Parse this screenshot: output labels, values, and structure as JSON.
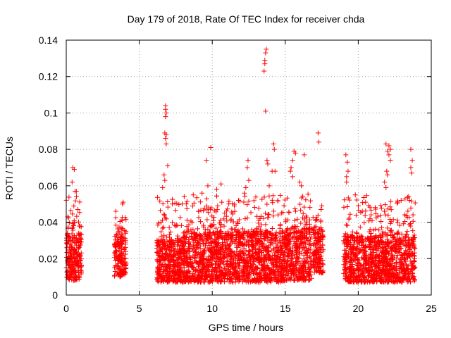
{
  "chart_data": {
    "type": "scatter",
    "title": "Day 179 of 2018, Rate Of TEC Index for receiver chda",
    "xlabel": "GPS time / hours",
    "ylabel": "ROTI / TECUs",
    "xlim": [
      0,
      25
    ],
    "ylim": [
      0,
      0.14
    ],
    "x_ticks": [
      0,
      5,
      10,
      15,
      20,
      25
    ],
    "x_tick_labels": [
      "0",
      "5",
      "10",
      "15",
      "20",
      "25"
    ],
    "y_ticks": [
      0,
      0.02,
      0.04,
      0.06,
      0.08,
      0.1,
      0.12,
      0.14
    ],
    "y_tick_labels": [
      "0",
      "0.02",
      "0.04",
      "0.06",
      "0.08",
      "0.1",
      "0.12",
      "0.14"
    ],
    "grid": true,
    "marker": "+",
    "marker_color": "#ff0000",
    "segments": [
      {
        "x_start": 0.0,
        "x_end": 1.05,
        "base_min": 0.008,
        "base_max": 0.034,
        "tail_max": 0.058,
        "spikes": [
          [
            0.45,
            0.07
          ],
          [
            0.55,
            0.069
          ],
          [
            0.4,
            0.062
          ],
          [
            0.6,
            0.057
          ],
          [
            0.7,
            0.054
          ],
          [
            0.8,
            0.047
          ]
        ]
      },
      {
        "x_start": 3.3,
        "x_end": 4.1,
        "base_min": 0.01,
        "base_max": 0.033,
        "tail_max": 0.045,
        "spikes": [
          [
            3.9,
            0.051
          ],
          [
            3.85,
            0.05
          ],
          [
            3.4,
            0.046
          ]
        ]
      },
      {
        "x_start": 6.2,
        "x_end": 8.0,
        "base_min": 0.007,
        "base_max": 0.03,
        "tail_max": 0.055,
        "spikes": [
          [
            6.8,
            0.104
          ],
          [
            6.8,
            0.102
          ],
          [
            6.85,
            0.1
          ],
          [
            6.8,
            0.098
          ],
          [
            6.75,
            0.089
          ],
          [
            6.85,
            0.088
          ],
          [
            6.8,
            0.086
          ],
          [
            6.85,
            0.083
          ],
          [
            6.95,
            0.071
          ],
          [
            6.7,
            0.066
          ],
          [
            6.75,
            0.063
          ],
          [
            6.6,
            0.059
          ]
        ]
      },
      {
        "x_start": 8.0,
        "x_end": 11.0,
        "base_min": 0.007,
        "base_max": 0.034,
        "tail_max": 0.055,
        "spikes": [
          [
            9.9,
            0.081
          ],
          [
            9.6,
            0.074
          ],
          [
            10.6,
            0.061
          ],
          [
            9.7,
            0.06
          ],
          [
            9.3,
            0.056
          ],
          [
            10.3,
            0.058
          ],
          [
            8.7,
            0.055
          ]
        ]
      },
      {
        "x_start": 11.0,
        "x_end": 13.3,
        "base_min": 0.007,
        "base_max": 0.034,
        "tail_max": 0.055,
        "spikes": [
          [
            12.45,
            0.074
          ],
          [
            12.4,
            0.07
          ],
          [
            12.5,
            0.063
          ],
          [
            12.3,
            0.059
          ],
          [
            12.2,
            0.056
          ],
          [
            11.8,
            0.052
          ]
        ]
      },
      {
        "x_start": 13.3,
        "x_end": 15.0,
        "base_min": 0.007,
        "base_max": 0.034,
        "tail_max": 0.055,
        "spikes": [
          [
            13.7,
            0.135
          ],
          [
            13.65,
            0.133
          ],
          [
            13.6,
            0.129
          ],
          [
            13.6,
            0.127
          ],
          [
            13.55,
            0.123
          ],
          [
            13.65,
            0.101
          ],
          [
            13.75,
            0.074
          ],
          [
            13.8,
            0.072
          ],
          [
            14.2,
            0.083
          ],
          [
            14.25,
            0.08
          ],
          [
            14.1,
            0.068
          ],
          [
            14.3,
            0.068
          ],
          [
            13.9,
            0.06
          ]
        ]
      },
      {
        "x_start": 15.0,
        "x_end": 16.8,
        "base_min": 0.008,
        "base_max": 0.036,
        "tail_max": 0.058,
        "spikes": [
          [
            15.6,
            0.079
          ],
          [
            15.7,
            0.078
          ],
          [
            16.3,
            0.077
          ],
          [
            15.5,
            0.074
          ],
          [
            15.4,
            0.07
          ],
          [
            15.35,
            0.068
          ],
          [
            15.5,
            0.065
          ],
          [
            16.0,
            0.062
          ],
          [
            16.1,
            0.06
          ]
        ]
      },
      {
        "x_start": 16.9,
        "x_end": 17.6,
        "base_min": 0.012,
        "base_max": 0.035,
        "tail_max": 0.045,
        "spikes": [
          [
            17.25,
            0.089
          ],
          [
            17.3,
            0.084
          ],
          [
            17.5,
            0.049
          ],
          [
            17.45,
            0.047
          ]
        ]
      },
      {
        "x_start": 19.0,
        "x_end": 21.0,
        "base_min": 0.007,
        "base_max": 0.032,
        "tail_max": 0.055,
        "spikes": [
          [
            19.15,
            0.077
          ],
          [
            19.25,
            0.073
          ],
          [
            19.3,
            0.068
          ],
          [
            19.2,
            0.065
          ],
          [
            19.2,
            0.062
          ],
          [
            19.8,
            0.055
          ],
          [
            20.5,
            0.051
          ]
        ]
      },
      {
        "x_start": 21.0,
        "x_end": 23.9,
        "base_min": 0.007,
        "base_max": 0.032,
        "tail_max": 0.055,
        "spikes": [
          [
            21.9,
            0.083
          ],
          [
            22.1,
            0.082
          ],
          [
            22.2,
            0.08
          ],
          [
            22.0,
            0.079
          ],
          [
            22.1,
            0.077
          ],
          [
            22.2,
            0.074
          ],
          [
            21.95,
            0.068
          ],
          [
            22.0,
            0.066
          ],
          [
            21.8,
            0.062
          ],
          [
            21.9,
            0.059
          ],
          [
            23.6,
            0.08
          ],
          [
            23.7,
            0.074
          ],
          [
            23.6,
            0.07
          ],
          [
            23.65,
            0.067
          ],
          [
            23.5,
            0.052
          ],
          [
            22.7,
            0.051
          ]
        ]
      }
    ]
  }
}
